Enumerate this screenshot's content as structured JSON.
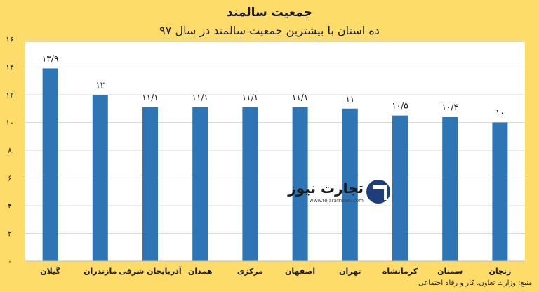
{
  "chart_data": {
    "type": "bar",
    "title": "جمعیت سالمند",
    "subtitle": "ده استان با بیشترین جمعیت سالمند در سال ۹۷",
    "categories": [
      "گیلان",
      "مازندران",
      "آذربایجان شرقی",
      "همدان",
      "مرکزی",
      "اصفهان",
      "تهران",
      "کرمانشاه",
      "سمنان",
      "زنجان"
    ],
    "values": [
      13.9,
      12,
      11.1,
      11.1,
      11.1,
      11.1,
      11,
      10.5,
      10.4,
      10
    ],
    "data_labels": [
      "۱۳/۹",
      "۱۲",
      "۱۱/۱",
      "۱۱/۱",
      "۱۱/۱",
      "۱۱/۱",
      "۱۱",
      "۱۰/۵",
      "۱۰/۴",
      "۱۰"
    ],
    "yticks": [
      0,
      2,
      4,
      6,
      8,
      10,
      12,
      14,
      16
    ],
    "ytick_labels": [
      "۰",
      "۲",
      "۴",
      "۶",
      "۸",
      "۱۰",
      "۱۲",
      "۱۴",
      "۱۶"
    ],
    "ylim": [
      0,
      16
    ],
    "grid": true,
    "bar_color": "#2E75B6",
    "grid_color": "#D9D9D9",
    "background": "#FDDC6A"
  },
  "watermark": {
    "brand": "تجارت نیوز",
    "url": "www.tejaratnews.com"
  },
  "source": "منبع: وزارت تعاون، کار و رفاه اجتماعی"
}
